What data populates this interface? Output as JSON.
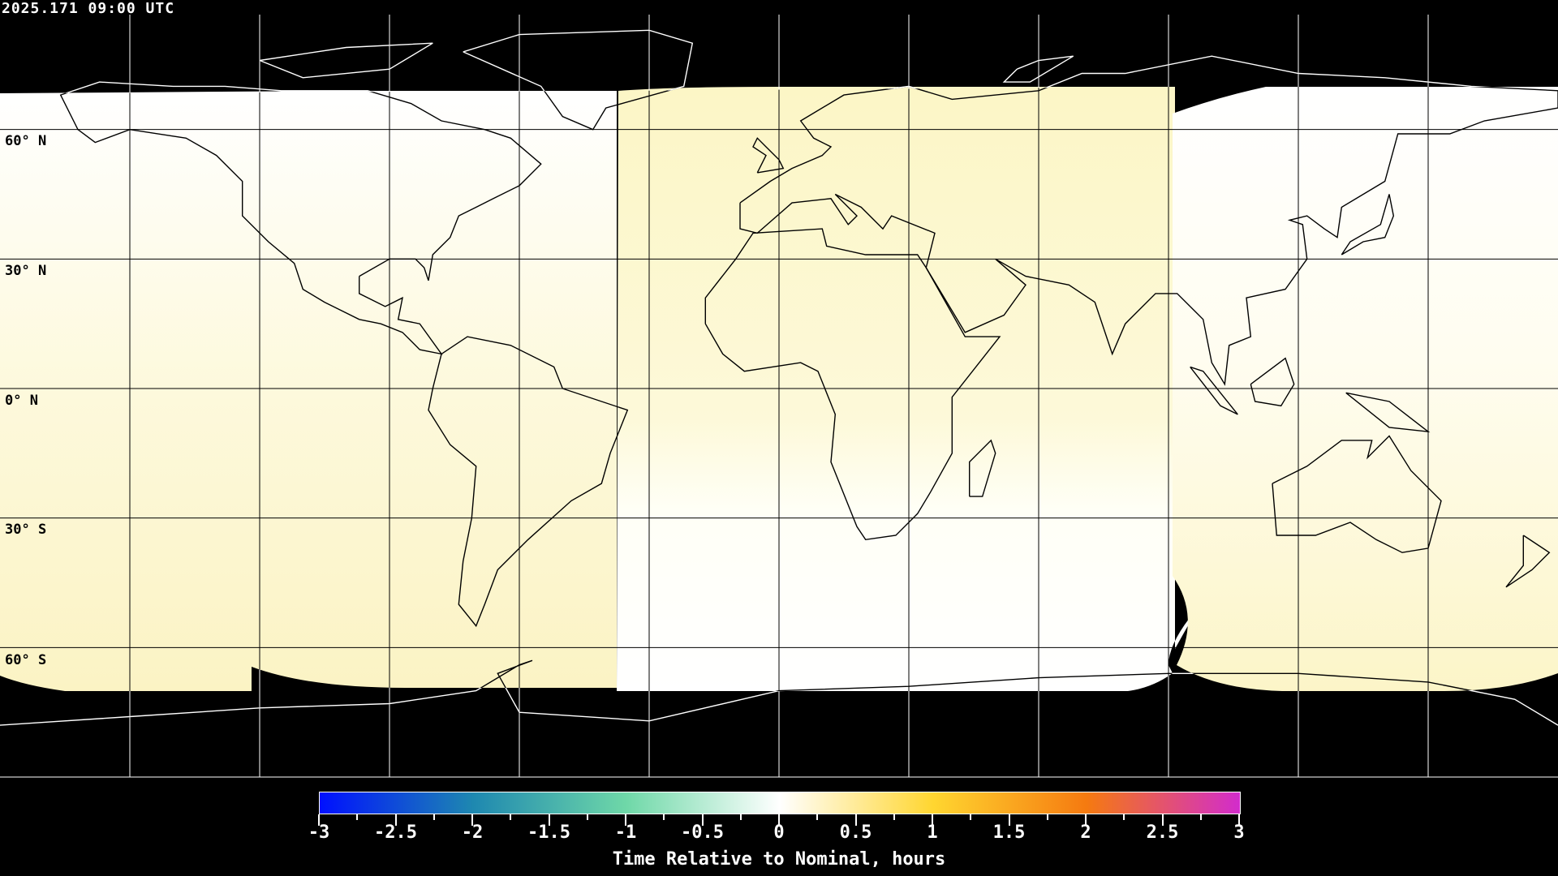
{
  "timestamp": "2025.171 09:00 UTC",
  "map": {
    "projection": "equirectangular",
    "grid_spacing_deg": 30,
    "lat_labels": [
      "60° N",
      "30° N",
      "0° N",
      "30° S",
      "60° S"
    ],
    "colors": {
      "background": "#000000",
      "coast_on_data": "#000000",
      "coast_on_background": "#ffffff",
      "grid": "#000000",
      "pale_yellow": "#fbf5c8",
      "near_white": "#fffef6"
    }
  },
  "colorbar": {
    "title": "Time Relative to Nominal, hours",
    "min": -3,
    "max": 3,
    "tick_labels": [
      "-3",
      "-2.5",
      "-2",
      "-1.5",
      "-1",
      "-0.5",
      "0",
      "0.5",
      "1",
      "1.5",
      "2",
      "2.5",
      "3"
    ],
    "colors": [
      "#0010ff",
      "#1e88b0",
      "#6fd8a8",
      "#ffffff",
      "#ffd630",
      "#f57a10",
      "#d22ccc"
    ]
  }
}
